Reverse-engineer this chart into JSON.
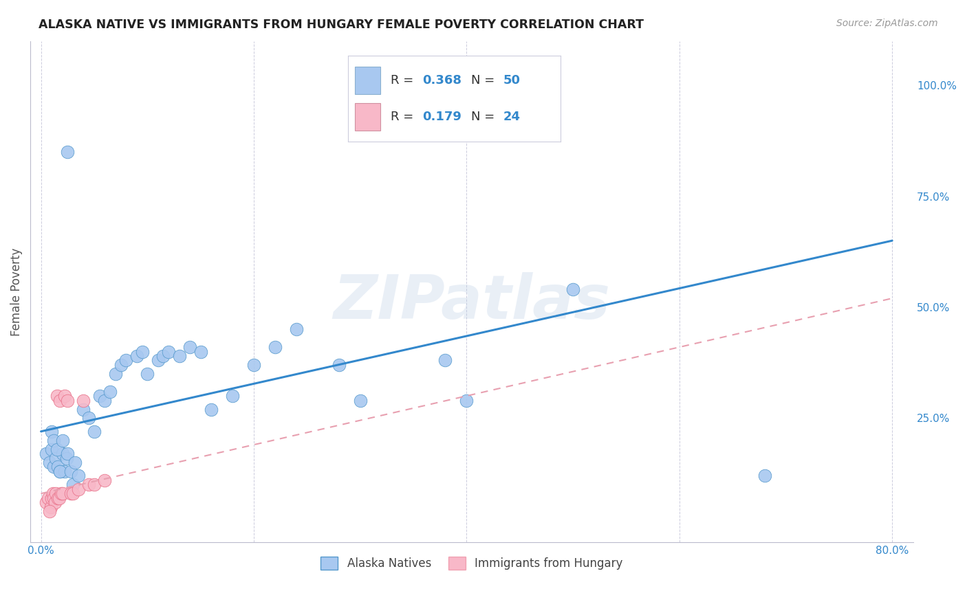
{
  "title": "ALASKA NATIVE VS IMMIGRANTS FROM HUNGARY FEMALE POVERTY CORRELATION CHART",
  "source": "Source: ZipAtlas.com",
  "ylabel": "Female Poverty",
  "xlim": [
    -0.01,
    0.82
  ],
  "ylim": [
    -0.03,
    1.1
  ],
  "xtick_vals": [
    0.0,
    0.2,
    0.4,
    0.6,
    0.8
  ],
  "xtick_labels": [
    "0.0%",
    "",
    "",
    "",
    "80.0%"
  ],
  "ytick_vals_right": [
    1.0,
    0.75,
    0.5,
    0.25
  ],
  "ytick_labels_right": [
    "100.0%",
    "75.0%",
    "50.0%",
    "25.0%"
  ],
  "alaska_native_color": "#a8c8f0",
  "alaska_edge_color": "#5599cc",
  "hungary_color": "#f8b8c8",
  "hungary_edge_color": "#e8708888",
  "alaska_line_color": "#3388cc",
  "hungary_line_color": "#e8a0b0",
  "legend_label_alaska": "Alaska Natives",
  "legend_label_hungary": "Immigrants from Hungary",
  "watermark": "ZIPatlas",
  "legend_R_color": "#3388cc",
  "alaska_R_text": "0.368",
  "alaska_N_text": "50",
  "hungary_R_text": "0.179",
  "hungary_N_text": "24",
  "alaska_line_start_y": 0.22,
  "alaska_line_end_y": 0.65,
  "hungary_line_start_y": 0.08,
  "hungary_line_end_y": 0.52,
  "alaska_x": [
    0.005,
    0.008,
    0.01,
    0.012,
    0.014,
    0.016,
    0.018,
    0.02,
    0.022,
    0.024,
    0.01,
    0.012,
    0.015,
    0.018,
    0.02,
    0.025,
    0.028,
    0.03,
    0.032,
    0.035,
    0.04,
    0.045,
    0.05,
    0.055,
    0.06,
    0.065,
    0.07,
    0.075,
    0.08,
    0.09,
    0.095,
    0.1,
    0.11,
    0.115,
    0.12,
    0.13,
    0.14,
    0.15,
    0.16,
    0.18,
    0.2,
    0.22,
    0.24,
    0.28,
    0.3,
    0.38,
    0.4,
    0.5,
    0.68,
    0.025
  ],
  "alaska_y": [
    0.17,
    0.15,
    0.18,
    0.14,
    0.16,
    0.14,
    0.13,
    0.17,
    0.13,
    0.16,
    0.22,
    0.2,
    0.18,
    0.13,
    0.2,
    0.17,
    0.13,
    0.1,
    0.15,
    0.12,
    0.27,
    0.25,
    0.22,
    0.3,
    0.29,
    0.31,
    0.35,
    0.37,
    0.38,
    0.39,
    0.4,
    0.35,
    0.38,
    0.39,
    0.4,
    0.39,
    0.41,
    0.4,
    0.27,
    0.3,
    0.37,
    0.41,
    0.45,
    0.37,
    0.29,
    0.38,
    0.29,
    0.54,
    0.12,
    0.85
  ],
  "hungary_x": [
    0.005,
    0.007,
    0.009,
    0.01,
    0.011,
    0.012,
    0.013,
    0.014,
    0.015,
    0.016,
    0.017,
    0.018,
    0.019,
    0.02,
    0.022,
    0.025,
    0.028,
    0.03,
    0.035,
    0.04,
    0.045,
    0.05,
    0.06,
    0.008
  ],
  "hungary_y": [
    0.06,
    0.07,
    0.05,
    0.07,
    0.08,
    0.07,
    0.06,
    0.08,
    0.3,
    0.07,
    0.07,
    0.29,
    0.08,
    0.08,
    0.3,
    0.29,
    0.08,
    0.08,
    0.09,
    0.29,
    0.1,
    0.1,
    0.11,
    0.04
  ]
}
